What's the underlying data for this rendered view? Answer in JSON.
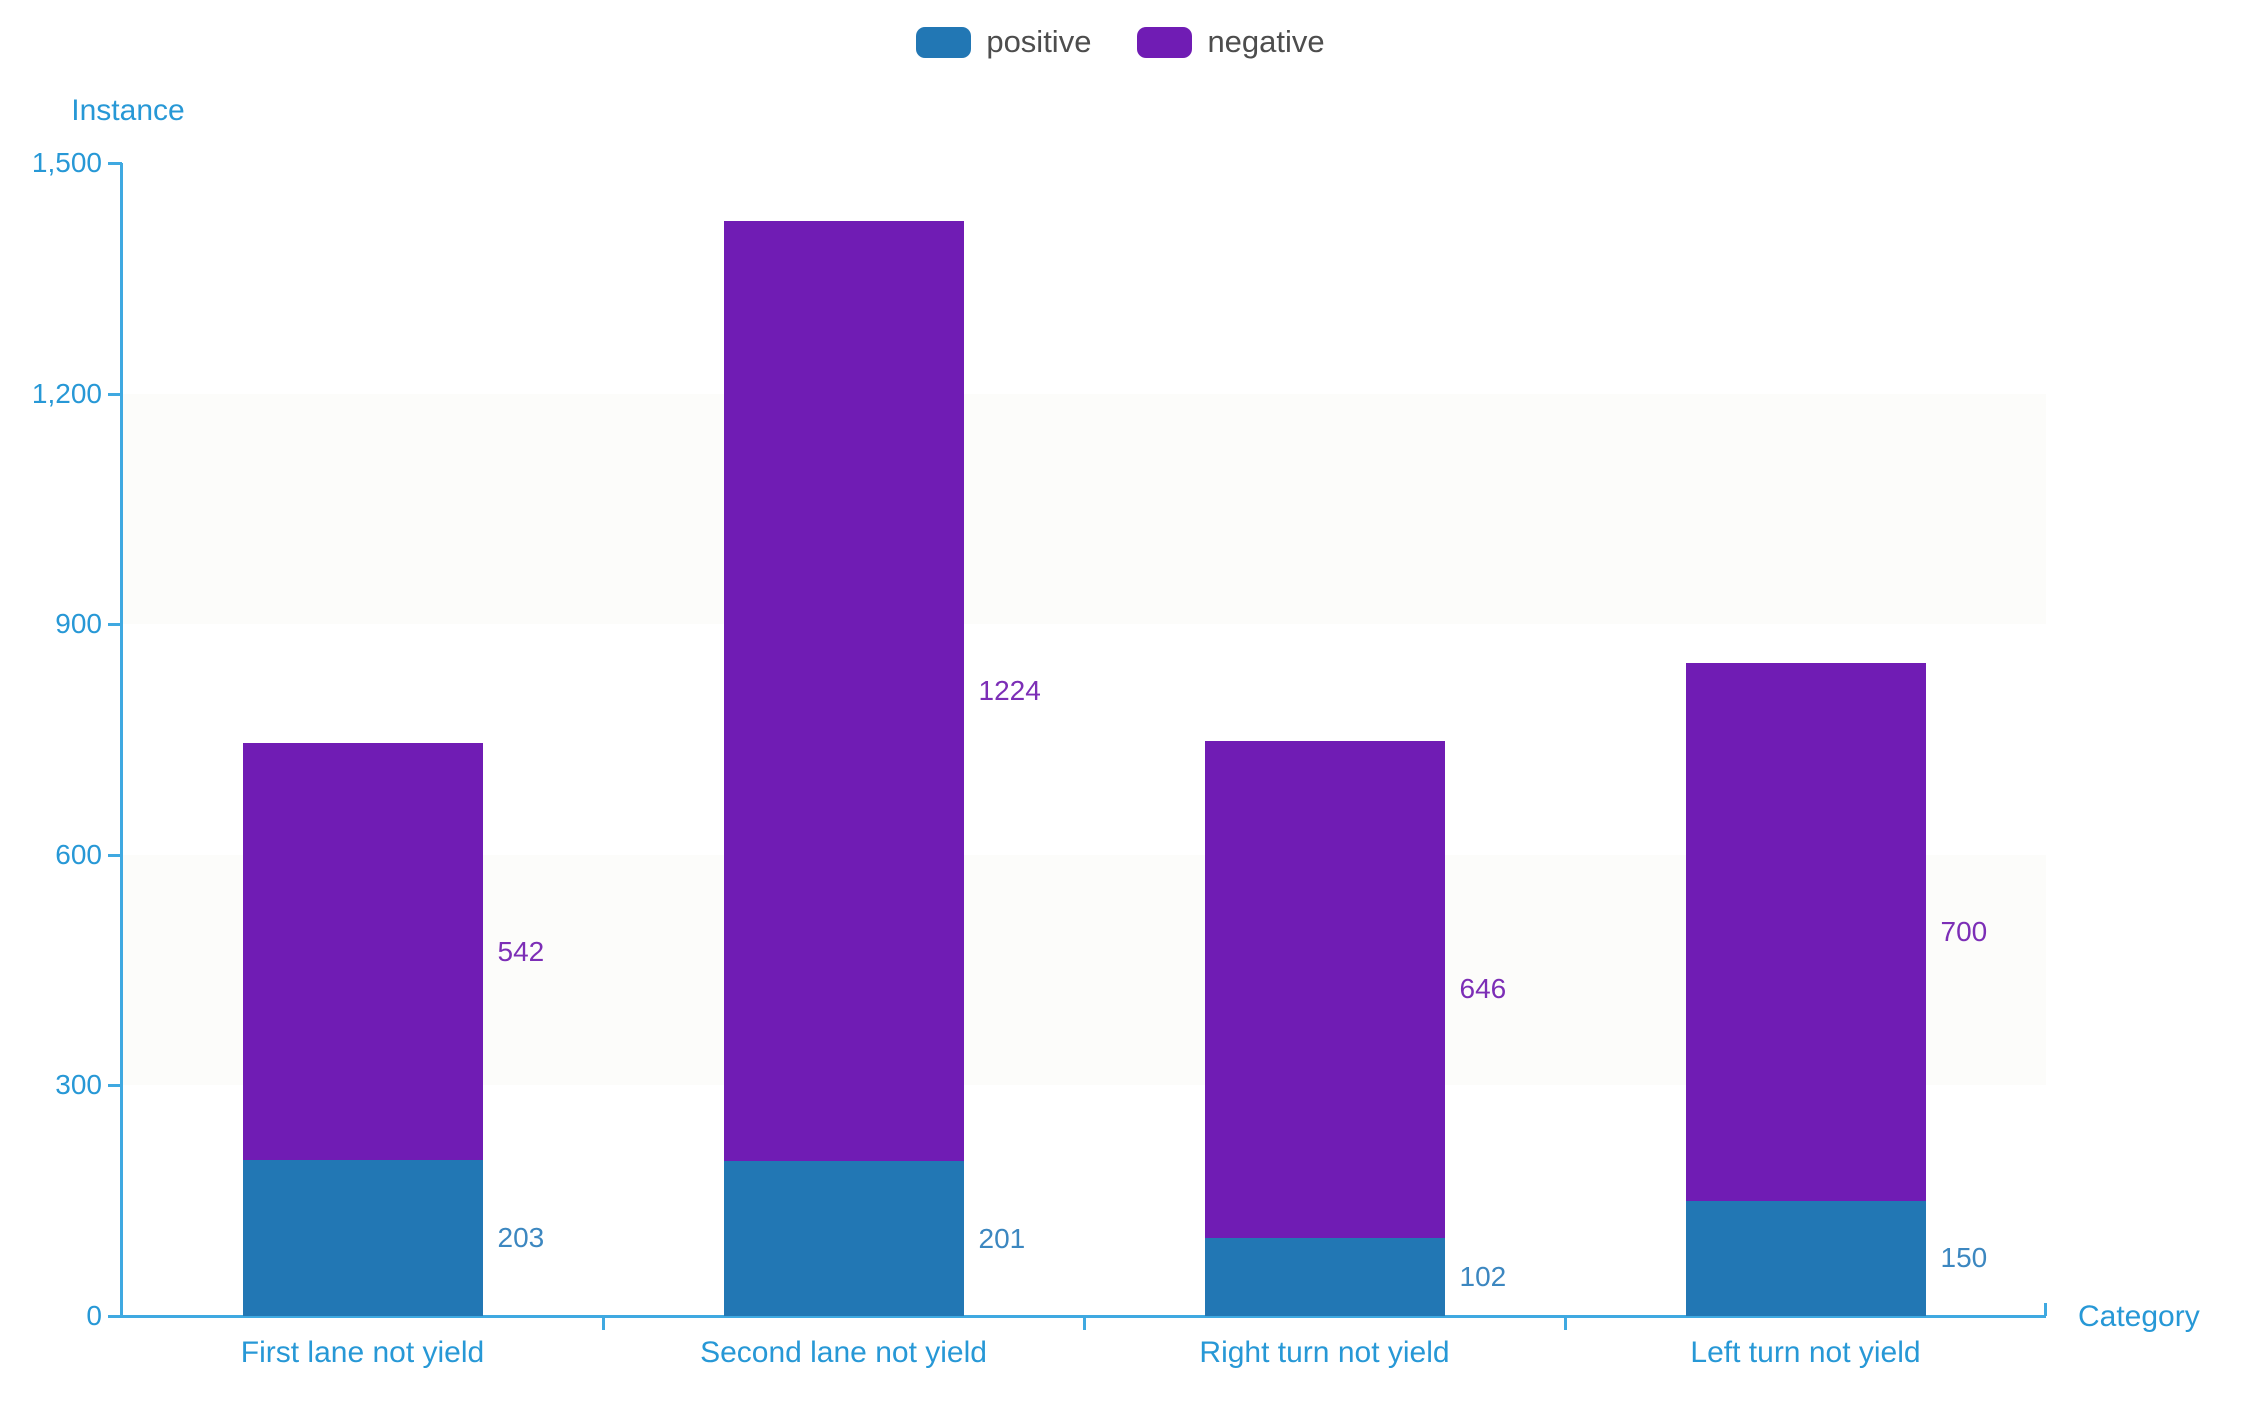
{
  "legend": {
    "items": [
      {
        "label": "positive",
        "color": "#2277b4"
      },
      {
        "label": "negative",
        "color": "#701cb4"
      }
    ]
  },
  "axes": {
    "y_title": "Instance",
    "x_title": "Category"
  },
  "chart_data": {
    "type": "bar",
    "stacked": true,
    "title": "",
    "categories": [
      "First lane not yield",
      "Second lane not yield",
      "Right turn not yield",
      "Left turn not yield"
    ],
    "series": [
      {
        "name": "positive",
        "color": "#2277b4",
        "label_color": "#3c87c0",
        "values": [
          203,
          201,
          102,
          150
        ]
      },
      {
        "name": "negative",
        "color": "#701cb4",
        "label_color": "#7c2eb6",
        "values": [
          542,
          1224,
          646,
          700
        ]
      }
    ],
    "xlabel": "Category",
    "ylabel": "Instance",
    "ylim": [
      0,
      1500
    ],
    "yticks": [
      {
        "value": 0,
        "label": "0"
      },
      {
        "value": 300,
        "label": "300"
      },
      {
        "value": 600,
        "label": "600"
      },
      {
        "value": 900,
        "label": "900"
      },
      {
        "value": 1200,
        "label": "1,200"
      },
      {
        "value": 1500,
        "label": "1,500"
      }
    ],
    "legend_position": "top",
    "grid": false
  },
  "colors": {
    "axis_line": "#3fa9e1",
    "axis_text": "#2798d6",
    "legend_text": "#4d4d4d",
    "band": "#fcfcfa"
  }
}
